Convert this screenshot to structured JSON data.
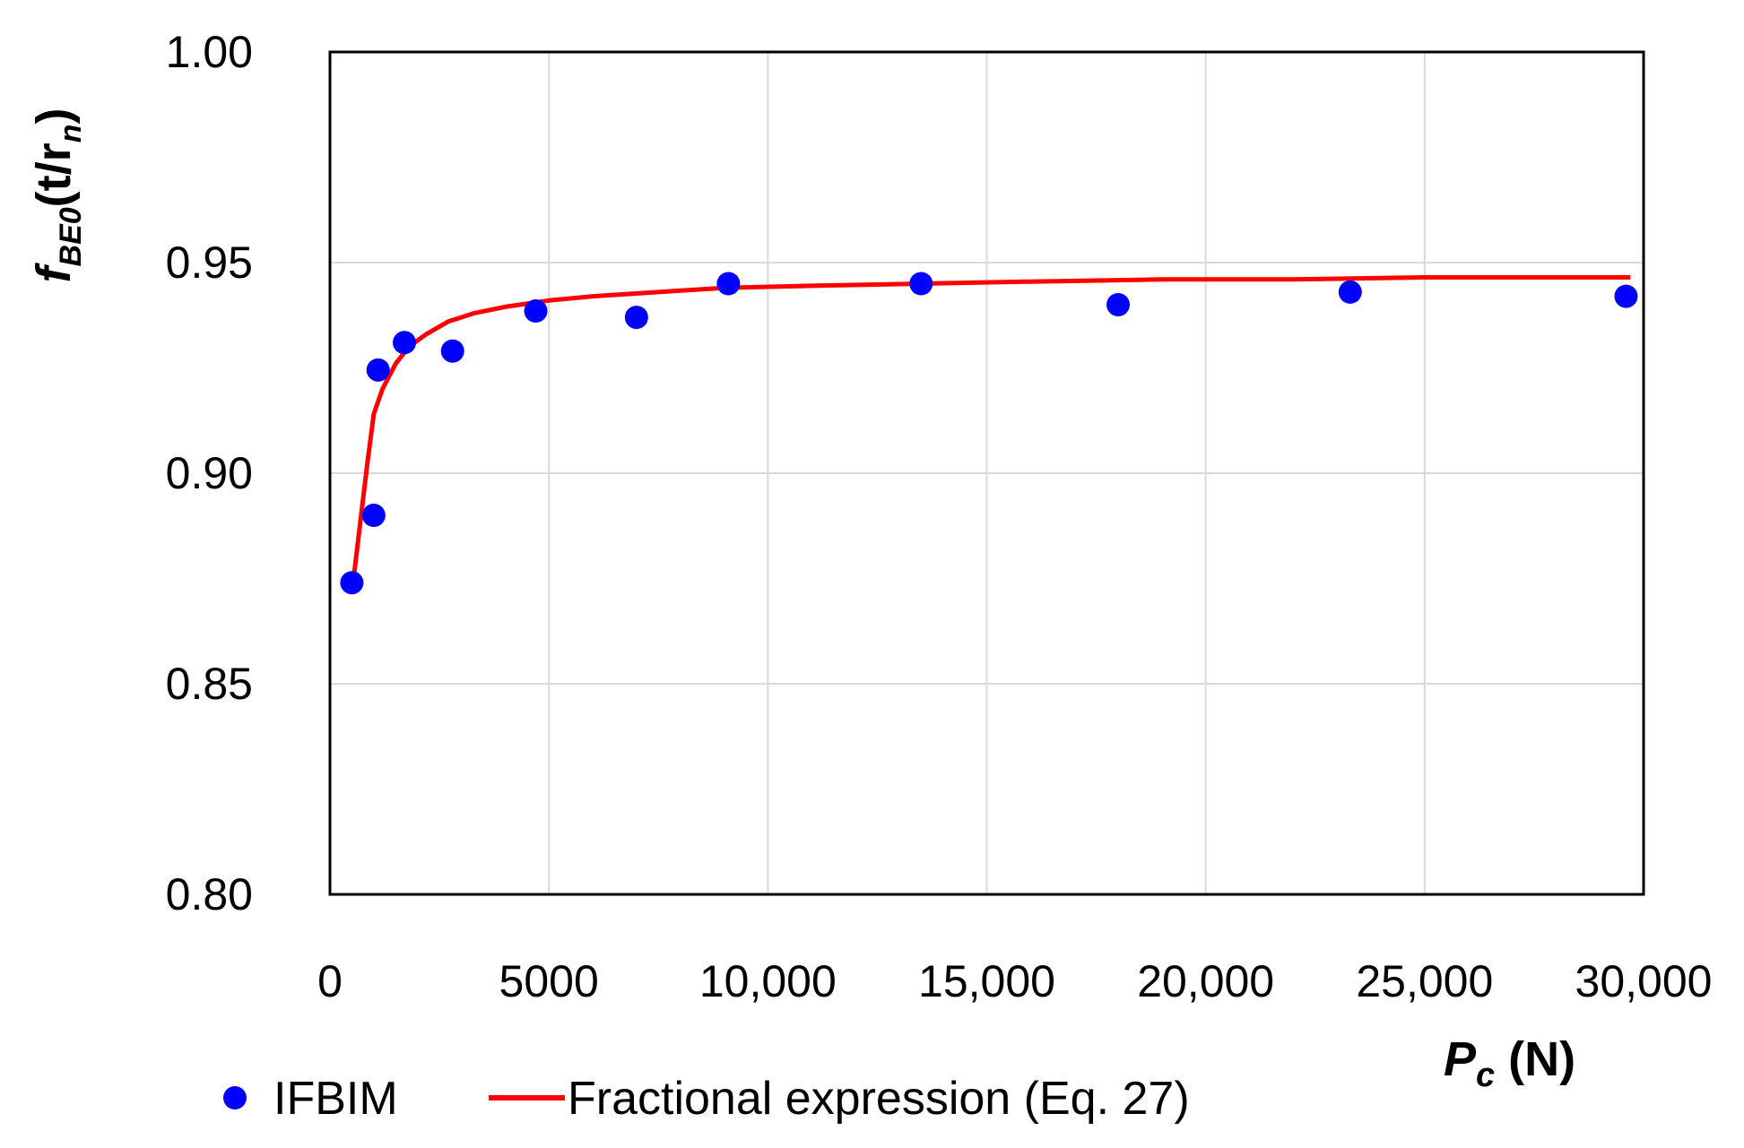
{
  "chart_data": {
    "type": "scatter",
    "xlabel_main": "P",
    "xlabel_sub": "c",
    "xlabel_unit": " (N)",
    "ylabel_main": "f",
    "ylabel_sub": "BE0",
    "ylabel_arg": "(t/r",
    "ylabel_arg_sub": "n",
    "ylabel_close": ")",
    "xlim": [
      0,
      30000
    ],
    "ylim": [
      0.8,
      1.0
    ],
    "xticks": [
      0,
      5000,
      10000,
      15000,
      20000,
      25000,
      30000
    ],
    "xtick_labels": [
      "0",
      "5000",
      "10,000",
      "15,000",
      "20,000",
      "25,000",
      "30,000"
    ],
    "yticks": [
      0.8,
      0.85,
      0.9,
      0.95,
      1.0
    ],
    "ytick_labels": [
      "0.80",
      "0.85",
      "0.90",
      "0.95",
      "1.00"
    ],
    "grid": true,
    "legend_position": "bottom",
    "series": [
      {
        "name": "IFBIM",
        "kind": "scatter",
        "color": "#0000ff",
        "x": [
          500,
          1000,
          1100,
          1700,
          2800,
          4700,
          7000,
          9100,
          13500,
          18000,
          23300,
          29600
        ],
        "y": [
          0.874,
          0.89,
          0.9245,
          0.931,
          0.929,
          0.9385,
          0.937,
          0.945,
          0.945,
          0.94,
          0.943,
          0.942
        ]
      },
      {
        "name": "Fractional expression (Eq. 27)",
        "kind": "line",
        "color": "#ff0000",
        "x": [
          550,
          700,
          850,
          1000,
          1200,
          1500,
          1800,
          2200,
          2700,
          3300,
          4000,
          5000,
          6000,
          7500,
          9000,
          11000,
          13500,
          16000,
          19000,
          22000,
          25000,
          28000,
          29700
        ],
        "y": [
          0.876,
          0.889,
          0.902,
          0.914,
          0.92,
          0.926,
          0.93,
          0.933,
          0.936,
          0.938,
          0.9395,
          0.941,
          0.942,
          0.943,
          0.944,
          0.9445,
          0.945,
          0.9455,
          0.946,
          0.946,
          0.9465,
          0.9465,
          0.9465
        ]
      }
    ]
  }
}
